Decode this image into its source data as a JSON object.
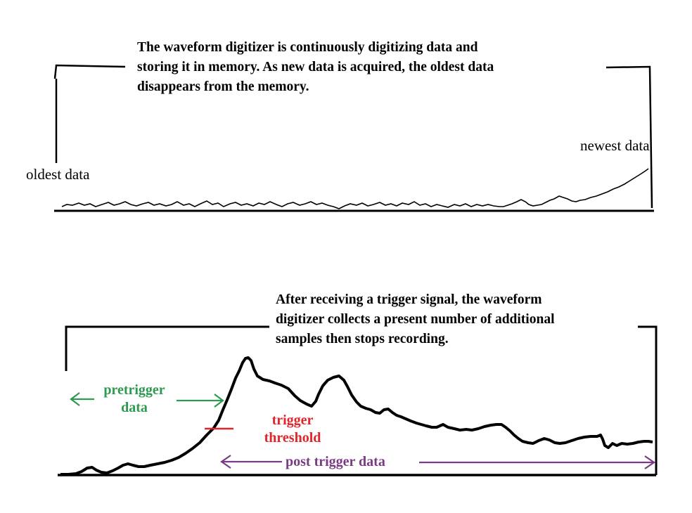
{
  "top_panel": {
    "caption": [
      "The waveform digitizer is continuously digitizing data and",
      "storing it in memory.  As new data is acquired, the oldest data",
      "disappears from the memory."
    ],
    "oldest_label": "oldest data",
    "newest_label": "newest data"
  },
  "bottom_panel": {
    "caption": [
      "After receiving a trigger signal, the waveform",
      "digitizer collects a present number of additional",
      "samples then stops recording."
    ],
    "pretrigger_label": [
      "pretrigger",
      "data"
    ],
    "trigger_label": [
      "trigger",
      "threshold"
    ],
    "post_trigger_label": "post trigger data"
  },
  "colors": {
    "ink": "#000000",
    "pretrigger": "#2e9a50",
    "trigger": "#e0262b",
    "post_trigger": "#7a3b85"
  }
}
